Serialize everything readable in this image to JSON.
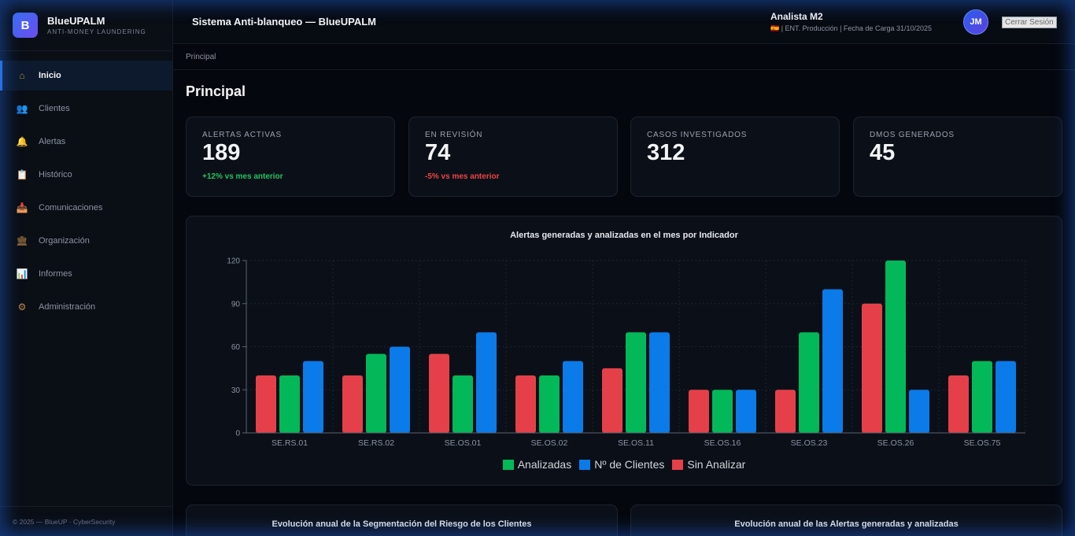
{
  "brand": {
    "logo_letter": "B",
    "name": "BlueUPALM",
    "subtitle": "ANTI-MONEY LAUNDERING"
  },
  "sidebar": {
    "items": [
      {
        "label": "Inicio",
        "icon": "house-icon",
        "active": true
      },
      {
        "label": "Clientes",
        "icon": "users-icon",
        "active": false
      },
      {
        "label": "Alertas",
        "icon": "bell-icon",
        "active": false
      },
      {
        "label": "Histórico",
        "icon": "clipboard-icon",
        "active": false
      },
      {
        "label": "Comunicaciones",
        "icon": "inbox-icon",
        "active": false
      },
      {
        "label": "Organización",
        "icon": "bank-icon",
        "active": false
      },
      {
        "label": "Informes",
        "icon": "bar-chart-icon",
        "active": false
      },
      {
        "label": "Administración",
        "icon": "gear-icon",
        "active": false
      }
    ],
    "footer": "© 2025 — BlueUP · CyberSecurity"
  },
  "header": {
    "title": "Sistema Anti-blanqueo — BlueUPALM",
    "user_name": "Analista M2",
    "user_meta": "🇪🇸 | ENT. Producción | Fecha de Carga 31/10/2025",
    "avatar_initials": "JM",
    "logout_label": "Cerrar Sesión"
  },
  "breadcrumb": "Principal",
  "page_title": "Principal",
  "stats": [
    {
      "label": "ALERTAS ACTIVAS",
      "value": "189",
      "delta": "+12% vs mes anterior",
      "trend": "up"
    },
    {
      "label": "EN REVISIÓN",
      "value": "74",
      "delta": "-5% vs mes anterior",
      "trend": "down"
    },
    {
      "label": "CASOS INVESTIGADOS",
      "value": "312",
      "delta": "",
      "trend": ""
    },
    {
      "label": "DMOS GENERADOS",
      "value": "45",
      "delta": "",
      "trend": ""
    }
  ],
  "colors": {
    "accent": "#2f7cf6",
    "sin_analizar": "#e5404a",
    "analizadas": "#03b858",
    "clientes": "#0a7be8"
  },
  "chart_data": {
    "type": "bar",
    "title": "Alertas generadas y analizadas en el mes por Indicador",
    "xlabel": "",
    "ylabel": "",
    "categories": [
      "SE.RS.01",
      "SE.RS.02",
      "SE.OS.01",
      "SE.OS.02",
      "SE.OS.11",
      "SE.OS.16",
      "SE.OS.23",
      "SE.OS.26",
      "SE.OS.75"
    ],
    "series": [
      {
        "name": "Sin Analizar",
        "color": "#e5404a",
        "values": [
          40,
          40,
          55,
          40,
          45,
          30,
          30,
          90,
          40
        ]
      },
      {
        "name": "Analizadas",
        "color": "#03b858",
        "values": [
          40,
          55,
          40,
          40,
          70,
          30,
          70,
          120,
          50
        ]
      },
      {
        "name": "Nº de Clientes",
        "color": "#0a7be8",
        "values": [
          50,
          60,
          70,
          50,
          70,
          30,
          100,
          30,
          50
        ]
      }
    ],
    "legend_order": [
      "Analizadas",
      "Nº de Clientes",
      "Sin Analizar"
    ],
    "legend_position": "bottom",
    "ylim": [
      0,
      120
    ],
    "yticks": [
      0,
      30,
      60,
      90,
      120
    ],
    "grid": true
  },
  "bottom_cards": [
    {
      "title": "Evolución anual de la Segmentación del Riesgo de los Clientes"
    },
    {
      "title": "Evolución anual de las Alertas generadas y analizadas"
    }
  ]
}
